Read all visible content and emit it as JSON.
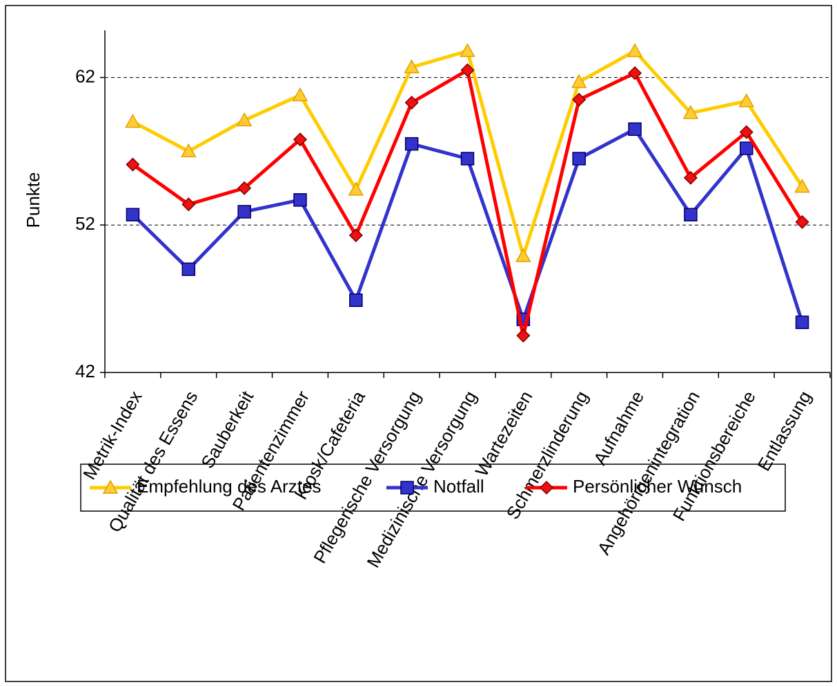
{
  "chart_data": {
    "type": "line",
    "y_label": "Punkte",
    "categories": [
      "Metrik-Index",
      "Qualität des Essens",
      "Sauberkeit",
      "Patientenzimmer",
      "Kiosk/Cafeteria",
      "Pflegerische Versorgung",
      "Medizinische Versorgung",
      "Wartezeiten",
      "Schmerzlinderung",
      "Aufnahme",
      "Angehörigenintegration",
      "Funktionsbereiche",
      "Entlassung"
    ],
    "series": [
      {
        "name": "Empfehlung des Arztes",
        "color": "#FFCC00",
        "marker": "triangle",
        "values": [
          59.0,
          57.0,
          59.1,
          60.8,
          54.4,
          62.7,
          63.8,
          49.9,
          61.7,
          63.8,
          59.6,
          60.4,
          54.6
        ]
      },
      {
        "name": "Notfall",
        "color": "#3333CC",
        "marker": "square",
        "values": [
          52.7,
          49.0,
          52.9,
          53.7,
          46.9,
          57.5,
          56.5,
          45.6,
          56.5,
          58.5,
          52.7,
          57.2,
          45.4
        ]
      },
      {
        "name": "Persönlicher Wunsch",
        "color": "#FF0000",
        "marker": "diamond",
        "values": [
          56.1,
          53.4,
          54.5,
          57.8,
          51.3,
          60.3,
          62.5,
          44.5,
          60.5,
          62.3,
          55.2,
          58.3,
          52.2
        ]
      }
    ],
    "ylim": [
      42,
      65.2
    ],
    "yticks": [
      42,
      52,
      62
    ],
    "grid": true,
    "legend": "bottom"
  }
}
